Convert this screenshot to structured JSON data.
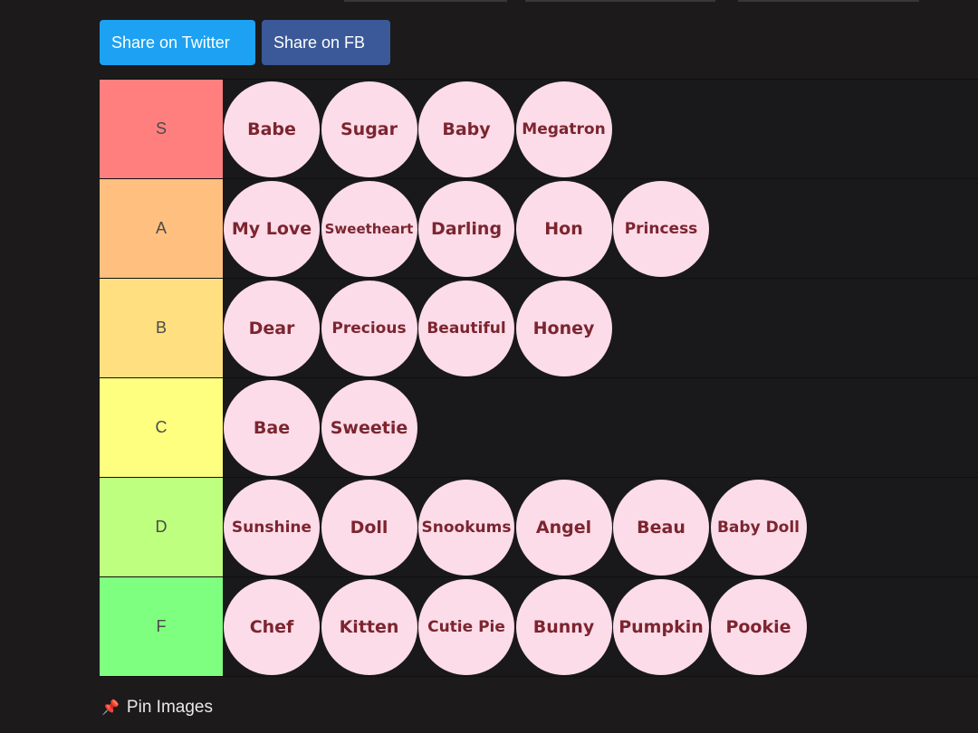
{
  "share": {
    "twitter_label": "Share on Twitter",
    "fb_label": "Share on FB"
  },
  "tiers": [
    {
      "label": "S",
      "color": "#ff7f7f",
      "items": [
        "Babe",
        "Sugar",
        "Baby",
        "Megatron"
      ]
    },
    {
      "label": "A",
      "color": "#ffbf7f",
      "items": [
        "My Love",
        "Sweetheart",
        "Darling",
        "Hon",
        "Princess"
      ]
    },
    {
      "label": "B",
      "color": "#ffdf7f",
      "items": [
        "Dear",
        "Precious",
        "Beautiful",
        "Honey"
      ]
    },
    {
      "label": "C",
      "color": "#ffff7f",
      "items": [
        "Bae",
        "Sweetie"
      ]
    },
    {
      "label": "D",
      "color": "#bfff7f",
      "items": [
        "Sunshine",
        "Doll",
        "Snookums",
        "Angel",
        "Beau",
        "Baby Doll"
      ]
    },
    {
      "label": "F",
      "color": "#7fff7f",
      "items": [
        "Chef",
        "Kitten",
        "Cutie Pie",
        "Bunny",
        "Pumpkin",
        "Pookie"
      ]
    }
  ],
  "pin": {
    "icon": "pushpin-icon",
    "label": "Pin Images"
  },
  "colors": {
    "background": "#1c1a1b",
    "chip_fill": "#fcdce8",
    "chip_text": "#7b2530"
  }
}
